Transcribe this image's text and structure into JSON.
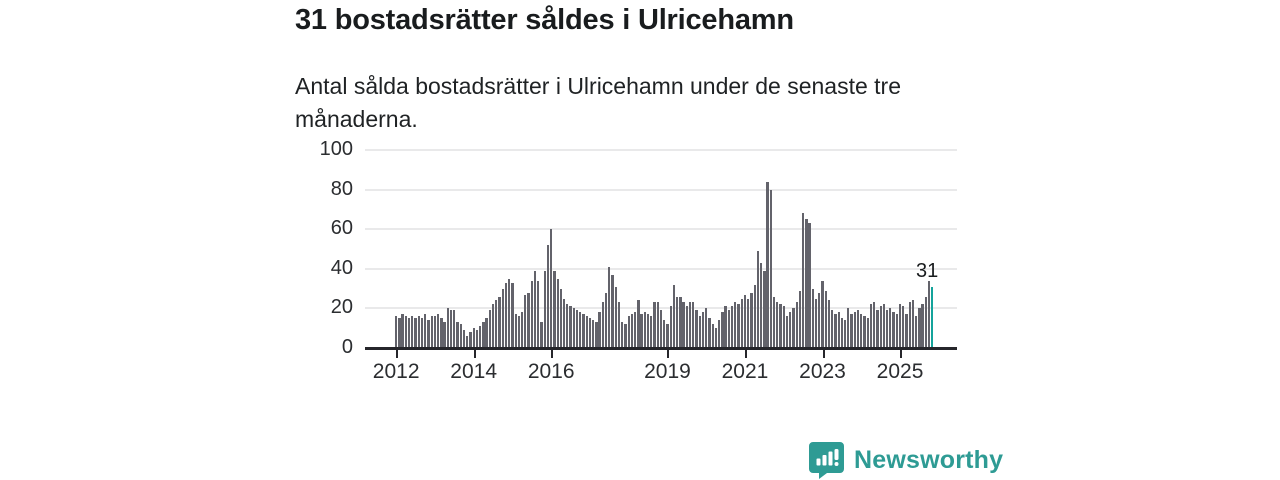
{
  "header": {
    "title": "31 bostadsrätter såldes i Ulricehamn",
    "subtitle": "Antal sålda bostadsrätter i Ulricehamn under de senaste tre månaderna."
  },
  "chart_data": {
    "type": "bar",
    "title": "Antal sålda bostadsrätter i Ulricehamn under de senaste tre månaderna",
    "x_start": "2012-01",
    "x_end": "2025-11",
    "x_unit": "month",
    "ylim": [
      0,
      100
    ],
    "grid": true,
    "yticks": [
      0,
      20,
      40,
      60,
      80,
      100
    ],
    "xticks": [
      {
        "label": "2012",
        "month_index": 0
      },
      {
        "label": "2014",
        "month_index": 24
      },
      {
        "label": "2016",
        "month_index": 48
      },
      {
        "label": "2019",
        "month_index": 84
      },
      {
        "label": "2021",
        "month_index": 108
      },
      {
        "label": "2023",
        "month_index": 132
      },
      {
        "label": "2025",
        "month_index": 156
      }
    ],
    "values": [
      16,
      15,
      17,
      16,
      15,
      16,
      15,
      16,
      15,
      17,
      14,
      16,
      16,
      17,
      15,
      13,
      20,
      19,
      19,
      13,
      12,
      9,
      6,
      8,
      10,
      9,
      11,
      13,
      15,
      19,
      22,
      24,
      26,
      30,
      33,
      35,
      33,
      17,
      16,
      18,
      27,
      28,
      34,
      39,
      34,
      13,
      39,
      52,
      60,
      39,
      35,
      30,
      25,
      22,
      21,
      20,
      19,
      18,
      17,
      16,
      15,
      14,
      13,
      18,
      23,
      28,
      41,
      37,
      31,
      23,
      13,
      12,
      16,
      17,
      18,
      24,
      17,
      18,
      17,
      16,
      23,
      23,
      19,
      14,
      12,
      21,
      32,
      26,
      26,
      23,
      21,
      23,
      23,
      19,
      16,
      18,
      20,
      15,
      12,
      10,
      14,
      18,
      21,
      19,
      21,
      23,
      22,
      25,
      27,
      25,
      28,
      32,
      49,
      43,
      39,
      84,
      80,
      26,
      23,
      22,
      21,
      16,
      18,
      20,
      23,
      29,
      68,
      65,
      63,
      30,
      25,
      28,
      34,
      29,
      24,
      19,
      17,
      18,
      15,
      14,
      20,
      17,
      18,
      19,
      17,
      16,
      15,
      22,
      23,
      19,
      21,
      22,
      19,
      20,
      18,
      17,
      22,
      21,
      17,
      23,
      24,
      16,
      20,
      22,
      26,
      34,
      31
    ],
    "highlight_last": true,
    "last_value_label": "31",
    "bar_color": "#63636b",
    "highlight_color": "#14a39b"
  },
  "branding": {
    "name": "Newsworthy",
    "color": "#2e9b94",
    "icon": "newsworthy-bar-chart-bubble-icon"
  }
}
